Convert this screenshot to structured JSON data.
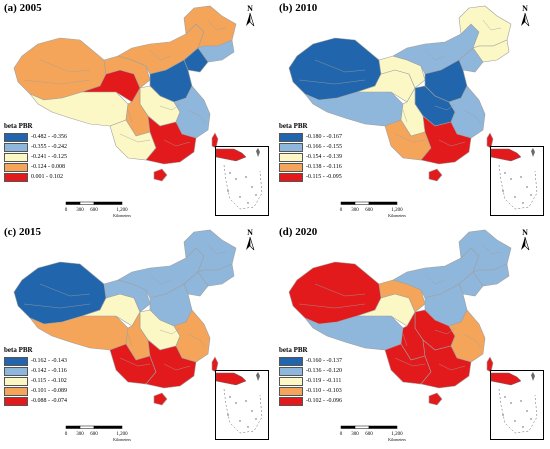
{
  "legend_title": "beta PBR",
  "scale": {
    "ticks": [
      "0",
      "300",
      "600",
      "1,200"
    ],
    "unit": "Kilometers"
  },
  "north_label": "N",
  "colors": {
    "class1": "#2166ac",
    "class2": "#8fb6db",
    "class3": "#fbf8c6",
    "class4": "#f4a55a",
    "class5": "#e31a1c",
    "boundary": "#a0a0a0",
    "outline": "#6b6b6b"
  },
  "panels": [
    {
      "title": "(a) 2005",
      "legend": [
        "-0.482 - -0.356",
        "-0.355 - -0.242",
        "-0.241 - -0.125",
        "-0.124 - 0.008",
        "0.001 - 0.102"
      ],
      "regions": {
        "xinjiang": 4,
        "tibet": 3,
        "qinghai": 5,
        "gansu": 4,
        "neimenggu": 4,
        "heilongjiang": 4,
        "jilin": 2,
        "liaoning": 1,
        "north": 1,
        "central": 3,
        "sichuan": 4,
        "east": 2,
        "southwest": 3,
        "south": 5,
        "hainan": 5,
        "taiwan": 5
      }
    },
    {
      "title": "(b) 2010",
      "legend": [
        "-0.180 - -0.167",
        "-0.166 - -0.155",
        "-0.154 - -0.139",
        "-0.138 - -0.116",
        "-0.115 - -0.095"
      ],
      "regions": {
        "xinjiang": 1,
        "tibet": 2,
        "qinghai": 3,
        "gansu": 3,
        "neimenggu": 2,
        "heilongjiang": 3,
        "jilin": 3,
        "liaoning": 2,
        "north": 1,
        "central": 1,
        "sichuan": 3,
        "east": 2,
        "southwest": 4,
        "south": 5,
        "hainan": 5,
        "taiwan": 5
      }
    },
    {
      "title": "(c) 2015",
      "legend": [
        "-0.162 - -0.143",
        "-0.142 - -0.116",
        "-0.115 - -0.102",
        "-0.101 - -0.089",
        "-0.088 - -0.074"
      ],
      "regions": {
        "xinjiang": 1,
        "tibet": 4,
        "qinghai": 3,
        "gansu": 2,
        "neimenggu": 2,
        "heilongjiang": 2,
        "jilin": 2,
        "liaoning": 2,
        "north": 2,
        "central": 3,
        "sichuan": 4,
        "east": 4,
        "southwest": 5,
        "south": 5,
        "hainan": 5,
        "taiwan": 5
      }
    },
    {
      "title": "(d) 2020",
      "legend": [
        "-0.160 - -0.137",
        "-0.136 - -0.120",
        "-0.119 - -0.111",
        "-0.110 - -0.103",
        "-0.102 - -0.096"
      ],
      "regions": {
        "xinjiang": 5,
        "tibet": 2,
        "qinghai": 3,
        "gansu": 4,
        "neimenggu": 2,
        "heilongjiang": 2,
        "jilin": 2,
        "liaoning": 2,
        "north": 2,
        "central": 5,
        "sichuan": 5,
        "east": 4,
        "southwest": 5,
        "south": 5,
        "hainan": 5,
        "taiwan": 5
      }
    }
  ]
}
